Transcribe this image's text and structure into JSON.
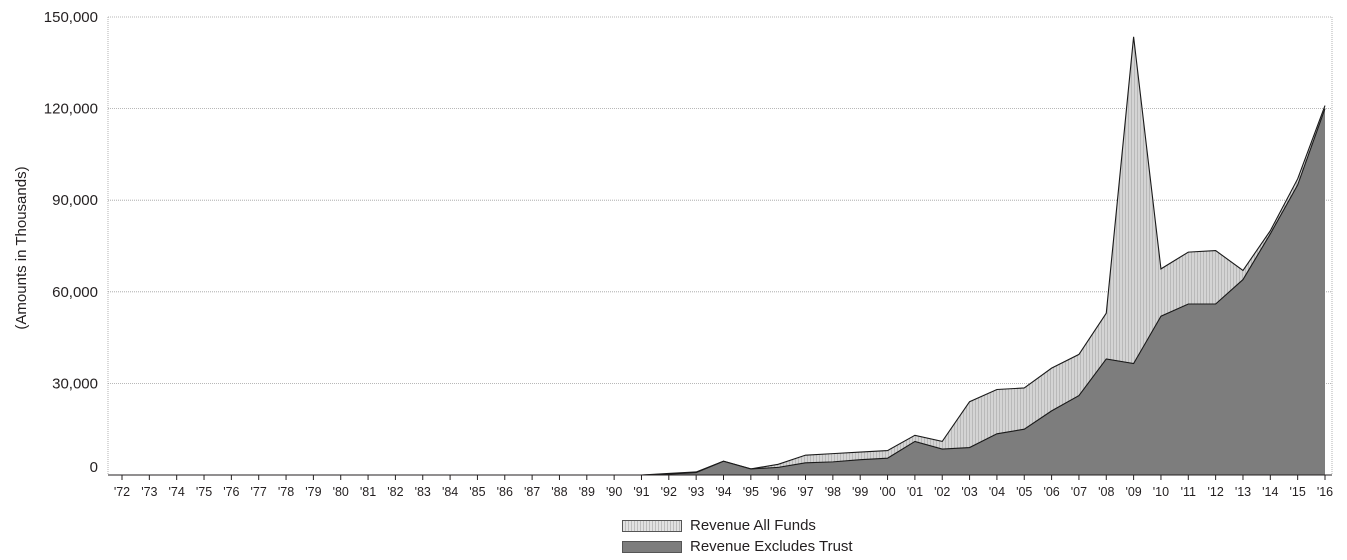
{
  "chart_data": {
    "type": "area",
    "title": "",
    "xlabel": "",
    "ylabel": "(Amounts in Thousands)",
    "x": [
      "'72",
      "'73",
      "'74",
      "'75",
      "'76",
      "'77",
      "'78",
      "'79",
      "'80",
      "'81",
      "'82",
      "'83",
      "'84",
      "'85",
      "'86",
      "'87",
      "'88",
      "'89",
      "'90",
      "'91",
      "'92",
      "'93",
      "'94",
      "'95",
      "'96",
      "'97",
      "'98",
      "'99",
      "'00",
      "'01",
      "'02",
      "'03",
      "'04",
      "'05",
      "'06",
      "'07",
      "'08",
      "'09",
      "'10",
      "'11",
      "'12",
      "'13",
      "'14",
      "'15",
      "'16"
    ],
    "yticks": [
      0,
      30000,
      60000,
      90000,
      120000,
      150000
    ],
    "ytick_labels": [
      "0",
      "30,000",
      "60,000",
      "90,000",
      "120,000",
      "150,000"
    ],
    "ylim": [
      0,
      150000
    ],
    "grid": true,
    "legend_position": "bottom-center",
    "series": [
      {
        "name": "Revenue All Funds",
        "color": "#d4d4d4",
        "values": [
          0,
          0,
          0,
          0,
          0,
          0,
          0,
          0,
          0,
          0,
          0,
          0,
          0,
          0,
          0,
          0,
          0,
          0,
          0,
          0,
          500,
          1000,
          4500,
          2000,
          3500,
          6500,
          7000,
          7500,
          8000,
          13000,
          11000,
          24000,
          28000,
          28500,
          35000,
          39500,
          53000,
          143500,
          67500,
          73000,
          73500,
          67000,
          80000,
          97000,
          121000
        ]
      },
      {
        "name": "Revenue Excludes Trust",
        "color": "#7d7d7d",
        "values": [
          0,
          0,
          0,
          0,
          0,
          0,
          0,
          0,
          0,
          0,
          0,
          0,
          0,
          0,
          0,
          0,
          0,
          0,
          0,
          0,
          300,
          800,
          4500,
          2000,
          2500,
          4000,
          4300,
          5000,
          5500,
          11000,
          8500,
          9000,
          13500,
          15000,
          21000,
          26000,
          38000,
          36500,
          52000,
          56000,
          56000,
          64000,
          79000,
          95000,
          120000
        ]
      }
    ]
  }
}
